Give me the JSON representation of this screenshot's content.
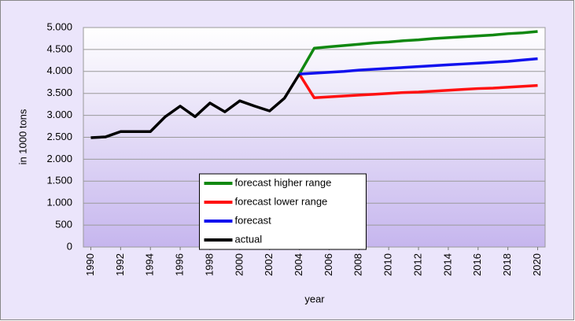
{
  "chart_data": {
    "type": "line",
    "x_label": "year",
    "y_label": "in 1000 tons",
    "xlim": [
      1989.5,
      2020.5
    ],
    "xticks": [
      1990,
      1992,
      1994,
      1996,
      1998,
      2000,
      2002,
      2004,
      2006,
      2008,
      2010,
      2012,
      2014,
      2016,
      2018,
      2020
    ],
    "ylim": [
      0,
      5000
    ],
    "yticks": [
      0,
      500,
      {
        "value": 1000,
        "label": "1.000"
      },
      {
        "value": 1500,
        "label": "1.500"
      },
      {
        "value": 2000,
        "label": "2.000"
      },
      {
        "value": 2500,
        "label": "2.500"
      },
      {
        "value": 3000,
        "label": "3.000"
      },
      {
        "value": 3500,
        "label": "3.500"
      },
      {
        "value": 4000,
        "label": "4.000"
      },
      {
        "value": 4500,
        "label": "4.500"
      },
      {
        "value": 5000,
        "label": "5.000"
      }
    ],
    "grid": true,
    "legend": "lower center",
    "series": [
      {
        "name": "forecast higher range",
        "color": "#118811",
        "x": [
          2004,
          2005,
          2006,
          2007,
          2008,
          2009,
          2010,
          2011,
          2012,
          2013,
          2014,
          2015,
          2016,
          2017,
          2018,
          2019,
          2020
        ],
        "values": [
          3940,
          4530,
          4560,
          4590,
          4620,
          4650,
          4670,
          4700,
          4720,
          4750,
          4770,
          4790,
          4810,
          4830,
          4860,
          4880,
          4910
        ]
      },
      {
        "name": "forecast lower range",
        "color": "#ff1111",
        "x": [
          2004,
          2005,
          2006,
          2007,
          2008,
          2009,
          2010,
          2011,
          2012,
          2013,
          2014,
          2015,
          2016,
          2017,
          2018,
          2019,
          2020
        ],
        "values": [
          3940,
          3400,
          3420,
          3440,
          3460,
          3480,
          3500,
          3520,
          3530,
          3550,
          3570,
          3590,
          3610,
          3620,
          3640,
          3660,
          3680
        ]
      },
      {
        "name": "forecast",
        "color": "#1111ee",
        "x": [
          2004,
          2005,
          2006,
          2007,
          2008,
          2009,
          2010,
          2011,
          2012,
          2013,
          2014,
          2015,
          2016,
          2017,
          2018,
          2019,
          2020
        ],
        "values": [
          3940,
          3960,
          3980,
          4000,
          4030,
          4050,
          4070,
          4090,
          4110,
          4130,
          4150,
          4170,
          4190,
          4210,
          4230,
          4260,
          4290
        ]
      },
      {
        "name": "actual",
        "color": "#000000",
        "x": [
          1990,
          1991,
          1992,
          1993,
          1994,
          1995,
          1996,
          1997,
          1998,
          1999,
          2000,
          2001,
          2002,
          2003,
          2004
        ],
        "values": [
          2490,
          2510,
          2630,
          2630,
          2630,
          2970,
          3210,
          2970,
          3280,
          3080,
          3330,
          3210,
          3100,
          3390,
          3940
        ]
      }
    ]
  }
}
